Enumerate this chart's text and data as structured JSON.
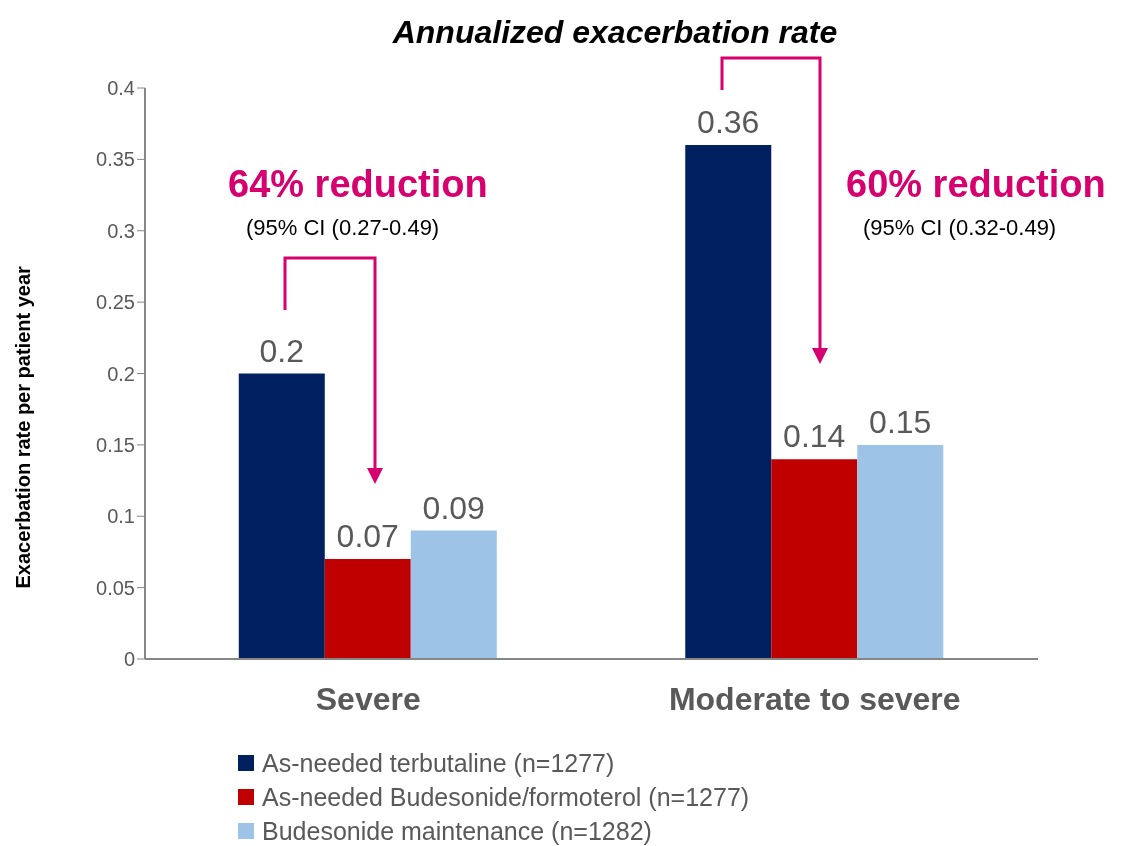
{
  "chart_data": {
    "type": "bar",
    "title": "Annualized exacerbation rate",
    "ylabel": "Exacerbation rate per patient year",
    "categories": [
      "Severe",
      "Moderate to severe"
    ],
    "series": [
      {
        "name": "As-needed terbutaline (n=1277)",
        "color": "#002060",
        "values": [
          0.2,
          0.36
        ]
      },
      {
        "name": "As-needed Budesonide/formoterol (n=1277)",
        "color": "#c00000",
        "values": [
          0.07,
          0.14
        ]
      },
      {
        "name": "Budesonide maintenance (n=1282)",
        "color": "#9dc3e6",
        "values": [
          0.09,
          0.15
        ]
      }
    ],
    "ylim": [
      0,
      0.4
    ],
    "yticks": [
      0,
      0.05,
      0.1,
      0.15,
      0.2,
      0.25,
      0.3,
      0.35,
      0.4
    ],
    "data_labels": true,
    "grid": false,
    "legend": "bottom",
    "annotations": [
      "64% reduction",
      "(95% CI (0.27-0.49)",
      "60% reduction",
      "(95% CI (0.32-0.49)"
    ]
  }
}
